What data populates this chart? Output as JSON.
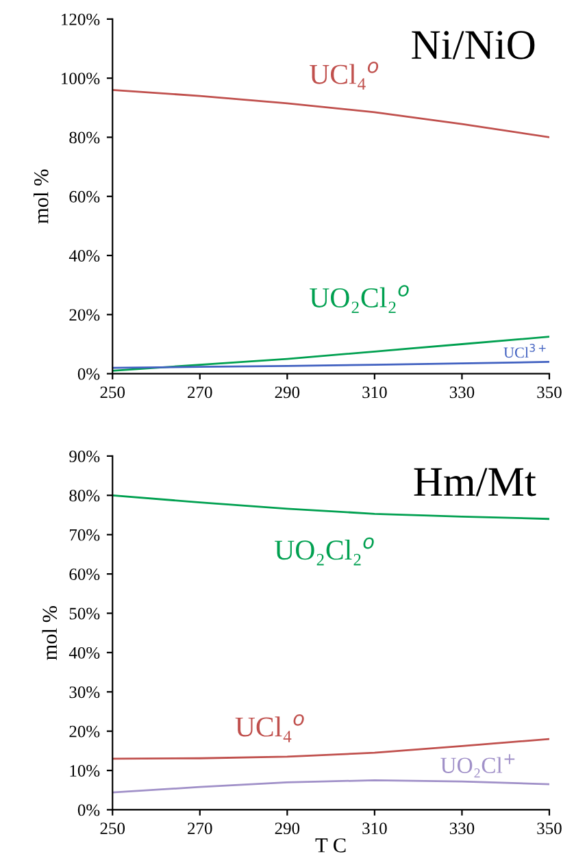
{
  "chart_data": [
    {
      "type": "line",
      "title": "Ni/NiO",
      "ylabel": "mol %",
      "x": [
        250,
        270,
        290,
        310,
        330,
        350
      ],
      "xlim": [
        250,
        350
      ],
      "xticks": [
        250,
        270,
        290,
        310,
        330,
        350
      ],
      "ylim": [
        0,
        120
      ],
      "yticks": [
        {
          "value": 0,
          "label": "0%"
        },
        {
          "value": 20,
          "label": "20%"
        },
        {
          "value": 40,
          "label": "40%"
        },
        {
          "value": 60,
          "label": "60%"
        },
        {
          "value": 80,
          "label": "80%"
        },
        {
          "value": 100,
          "label": "100%"
        },
        {
          "value": 120,
          "label": "120%"
        }
      ],
      "grid": false,
      "legend": false,
      "marker": "none",
      "line_style": "solid",
      "series": [
        {
          "name": "UCl₄$^{o}$",
          "color": "#c0504d",
          "values": [
            96,
            94,
            91.5,
            88.5,
            84.5,
            80
          ]
        },
        {
          "name": "UO₂Cl₂$^{o}$",
          "color": "#00a050",
          "values": [
            1,
            3,
            5,
            7.5,
            10,
            12.5
          ]
        },
        {
          "name": "UCl$^{3+}$",
          "color": "#4060c0",
          "values": [
            2,
            2.3,
            2.6,
            3,
            3.5,
            4
          ]
        }
      ]
    },
    {
      "type": "line",
      "title": "Hm/Mt",
      "ylabel": "mol %",
      "xlabel": "T C",
      "x": [
        250,
        270,
        290,
        310,
        330,
        350
      ],
      "xlim": [
        250,
        350
      ],
      "xticks": [
        250,
        270,
        290,
        310,
        330,
        350
      ],
      "ylim": [
        0,
        90
      ],
      "yticks": [
        {
          "value": 0,
          "label": "0%"
        },
        {
          "value": 10,
          "label": "10%"
        },
        {
          "value": 20,
          "label": "20%"
        },
        {
          "value": 30,
          "label": "30%"
        },
        {
          "value": 40,
          "label": "40%"
        },
        {
          "value": 50,
          "label": "50%"
        },
        {
          "value": 60,
          "label": "60%"
        },
        {
          "value": 70,
          "label": "70%"
        },
        {
          "value": 80,
          "label": "80%"
        },
        {
          "value": 90,
          "label": "90%"
        }
      ],
      "grid": false,
      "legend": false,
      "marker": "none",
      "line_style": "solid",
      "series": [
        {
          "name": "UO₂Cl₂$^{o}$",
          "color": "#00a050",
          "values": [
            80,
            78.2,
            76.6,
            75.3,
            74.6,
            74
          ]
        },
        {
          "name": "UCl₄$^{o}$",
          "color": "#c0504d",
          "values": [
            13,
            13.1,
            13.5,
            14.5,
            16.2,
            18
          ]
        },
        {
          "name": "UO₂Cl$^{+}$",
          "color": "#a090c8",
          "values": [
            4.4,
            5.8,
            7,
            7.5,
            7.2,
            6.5
          ]
        }
      ]
    }
  ]
}
